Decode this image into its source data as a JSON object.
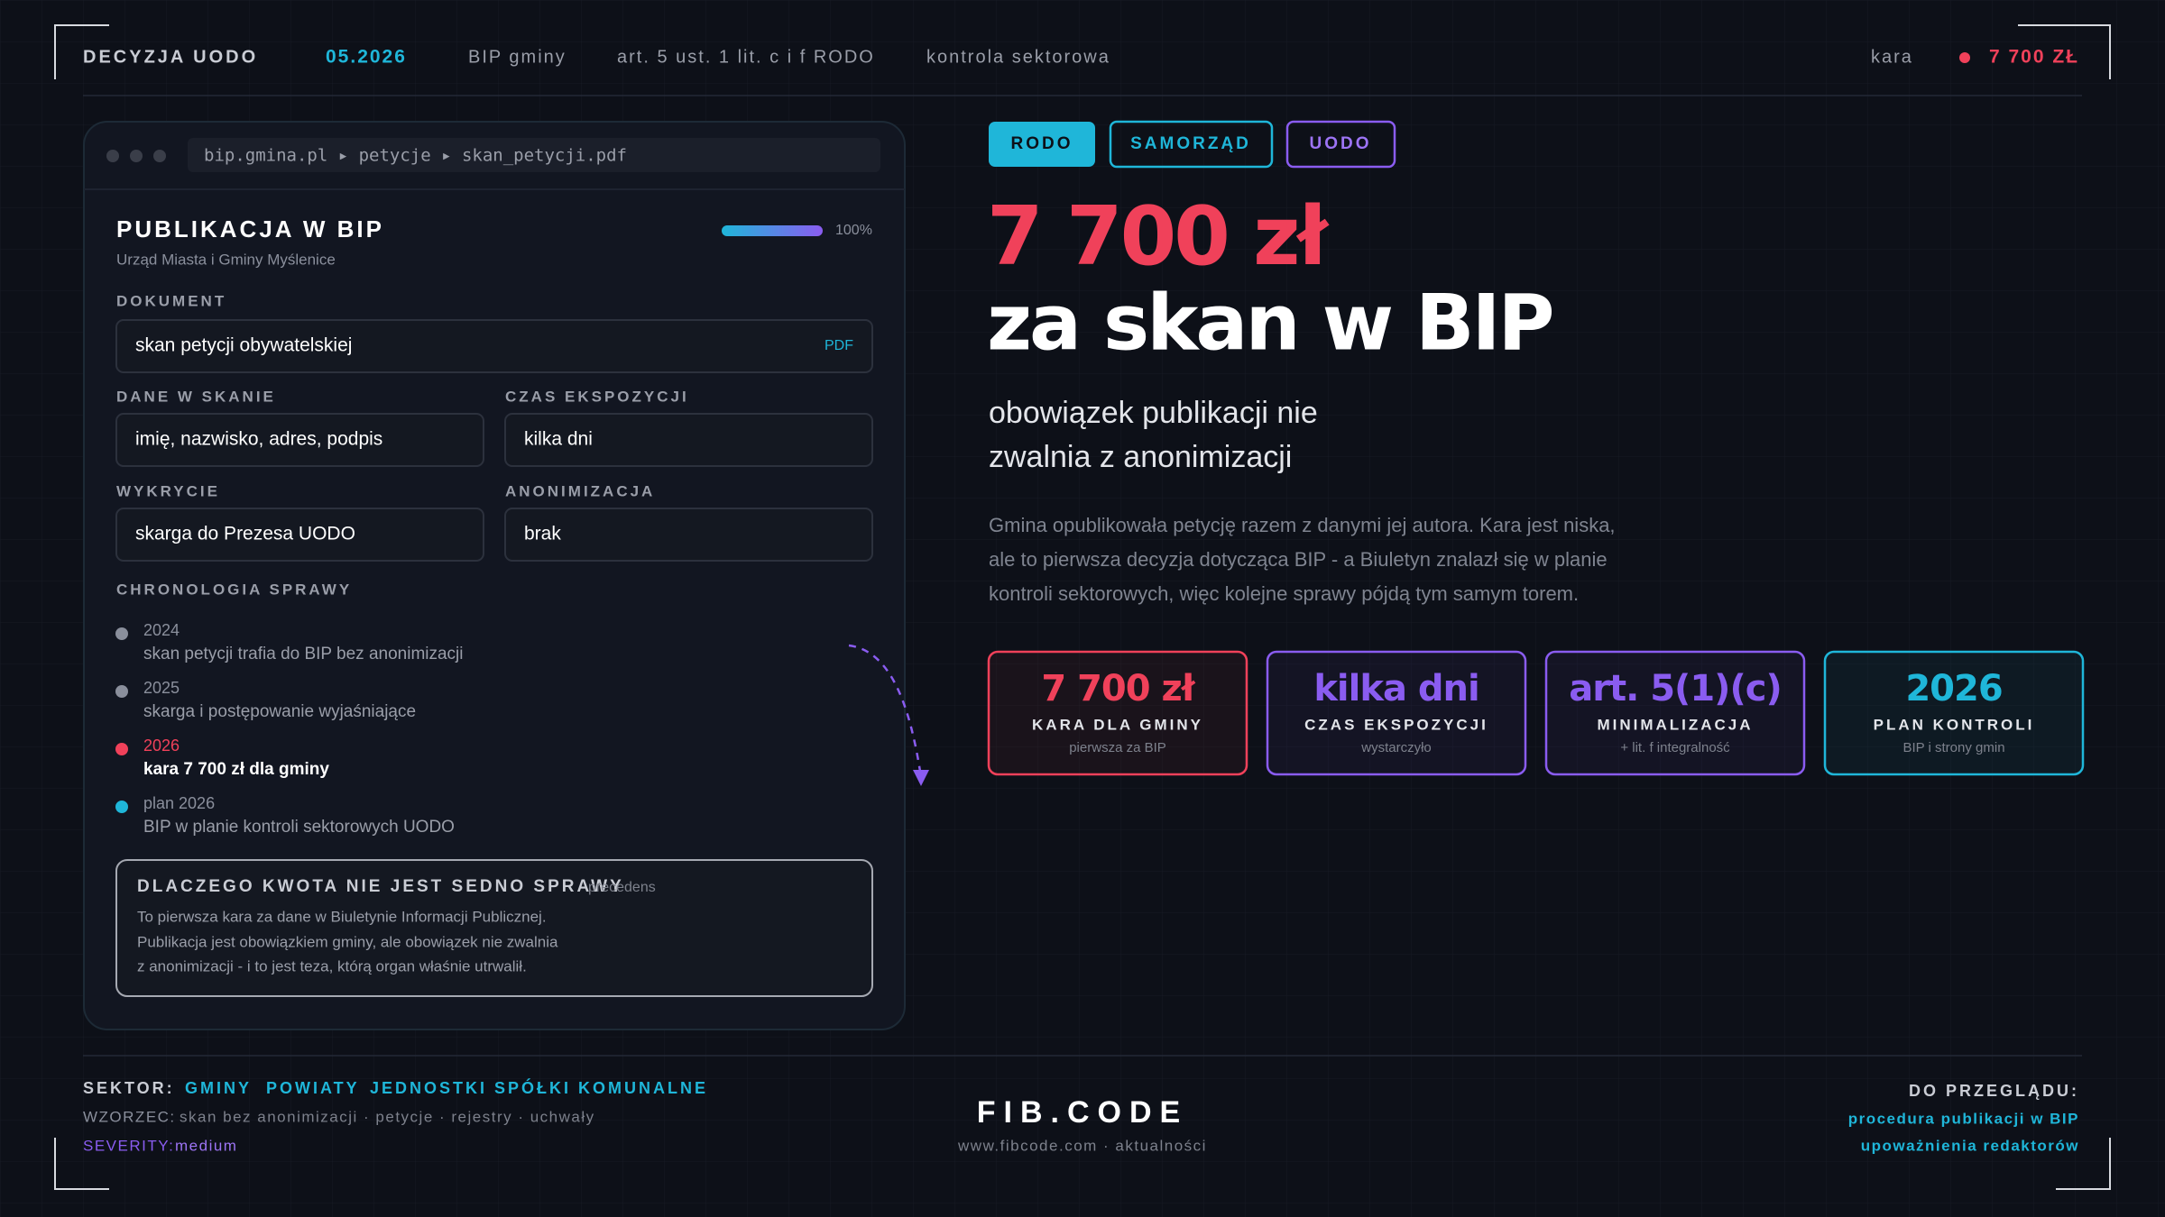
{
  "header": {
    "title": "DECYZJA UODO",
    "date": "05.2026",
    "items": [
      "BIP gminy",
      "art. 5 ust. 1 lit. c i f RODO",
      "kontrola sektorowa"
    ],
    "fine_label": "kara",
    "fine": "7 700 ZŁ"
  },
  "panel": {
    "url": "bip.gmina.pl ▸ petycje ▸ skan_petycji.pdf",
    "title": "PUBLIKACJA W BIP",
    "subtitle": "Urząd Miasta i Gminy Myślenice",
    "progress": "100%",
    "document": {
      "label": "DOKUMENT",
      "value": "skan petycji obywatelskiej",
      "badge": "PDF"
    },
    "fields": [
      {
        "label": "DANE W SKANIE",
        "value": "imię, nazwisko, adres, podpis"
      },
      {
        "label": "CZAS EKSPOZYCJI",
        "value": "kilka dni"
      },
      {
        "label": "WYKRYCIE",
        "value": "skarga do Prezesa UODO"
      },
      {
        "label": "ANONIMIZACJA",
        "value": "brak"
      }
    ],
    "timeline_title": "CHRONOLOGIA SPRAWY",
    "timeline": [
      {
        "year": "2024",
        "text": "skan petycji trafia do BIP bez anonimizacji",
        "color": "#8a8f9c"
      },
      {
        "year": "2025",
        "text": "skarga i postępowanie wyjaśniające",
        "color": "#8a8f9c"
      },
      {
        "year": "2026",
        "text": "kara 7 700 zł dla gminy",
        "color": "#f0415a"
      },
      {
        "year": "plan 2026",
        "text": "BIP w planie kontroli sektorowych UODO",
        "color": "#1fb6d9"
      }
    ],
    "note": {
      "title": "DLACZEGO KWOTA NIE JEST SEDNO SPRAWY",
      "tag": "precedens",
      "lines": [
        "To pierwsza kara za dane w Biuletynie Informacji Publicznej.",
        "Publikacja jest obowiązkiem gminy, ale obowiązek nie zwalnia",
        "z anonimizacji - i to jest teza, którą organ właśnie utrwalił."
      ]
    }
  },
  "hero": {
    "tags": [
      "RODO",
      "SAMORZĄD",
      "UODO"
    ],
    "amount": "7 700 zł",
    "headline": "za skan w BIP",
    "subtitle": [
      "obowiązek publikacji nie",
      "zwalnia z anonimizacji"
    ],
    "paragraph": [
      "Gmina opublikowała petycję razem z danymi jej autora. Kara jest niska,",
      "ale to pierwsza decyzja dotycząca BIP - a Biuletyn znalazł się w planie",
      "kontroli sektorowych, więc kolejne sprawy pójdą tym samym torem."
    ]
  },
  "stats": [
    {
      "value": "7 700 zł",
      "label": "KARA DLA GMINY",
      "sub": "pierwsza za BIP",
      "color": "#f0415a"
    },
    {
      "value": "kilka dni",
      "label": "CZAS EKSPOZYCJI",
      "sub": "wystarczyło",
      "color": "#8a5cf0"
    },
    {
      "value": "art. 5(1)(c)",
      "label": "MINIMALIZACJA",
      "sub": "+ lit. f integralność",
      "color": "#8a5cf0"
    },
    {
      "value": "2026",
      "label": "PLAN KONTROLI",
      "sub": "BIP i strony gmin",
      "color": "#1fb6d9"
    }
  ],
  "footer": {
    "sector_label": "SEKTOR:",
    "sectors": [
      "GMINY",
      "POWIATY",
      "JEDNOSTKI",
      "SPÓŁKI KOMUNALNE"
    ],
    "pattern_label": "WZORZEC:",
    "pattern": "skan bez anonimizacji · petycje · rejestry · uchwały",
    "severity_label": "SEVERITY:",
    "severity": "medium",
    "brand": "FIB.CODE",
    "brand_sub": "www.fibcode.com · aktualności",
    "review_label": "DO PRZEGLĄDU:",
    "review": [
      "procedura publikacji w BIP",
      "upoważnienia redaktorów"
    ]
  }
}
